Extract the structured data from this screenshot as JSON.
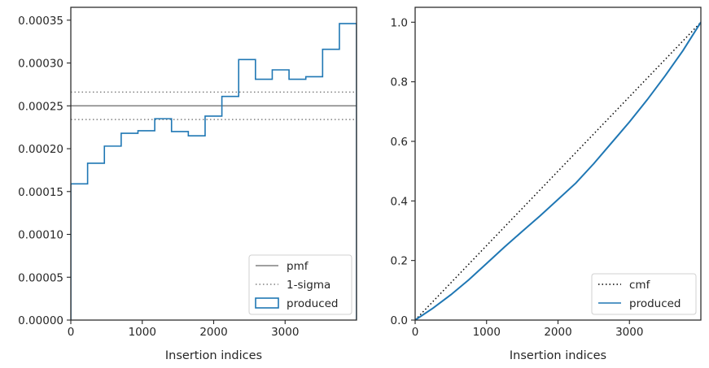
{
  "chart_data": [
    {
      "type": "step-histogram",
      "xlabel": "Insertion indices",
      "ylabel": "",
      "xlim": [
        0,
        4000
      ],
      "ylim": [
        0,
        0.000365
      ],
      "xticks": [
        0,
        1000,
        2000,
        3000
      ],
      "xtick_labels": [
        "0",
        "1000",
        "2000",
        "3000"
      ],
      "yticks": [
        0,
        5e-05,
        0.0001,
        0.00015,
        0.0002,
        0.00025,
        0.0003,
        0.00035
      ],
      "ytick_labels": [
        "0.00000",
        "0.00005",
        "0.00010",
        "0.00015",
        "0.00020",
        "0.00025",
        "0.00030",
        "0.00035"
      ],
      "grid": false,
      "legend_position": "lower-right",
      "series": [
        {
          "name": "pmf",
          "kind": "hline",
          "y": 0.00025,
          "color": "#808080",
          "style": "solid"
        },
        {
          "name": "1-sigma",
          "kind": "hlines",
          "y": [
            0.000266,
            0.000234
          ],
          "color": "#808080",
          "style": "dotted"
        },
        {
          "name": "produced",
          "kind": "step",
          "color": "#1f77b4",
          "bin_edges": [
            0,
            235,
            470,
            705,
            940,
            1175,
            1410,
            1645,
            1880,
            2115,
            2350,
            2585,
            2820,
            3055,
            3290,
            3525,
            3760,
            4000
          ],
          "values": [
            0.000159,
            0.000183,
            0.000203,
            0.000218,
            0.000221,
            0.000235,
            0.00022,
            0.000215,
            0.000238,
            0.000261,
            0.000304,
            0.000281,
            0.000292,
            0.000281,
            0.000284,
            0.000316,
            0.000346
          ]
        }
      ]
    },
    {
      "type": "line",
      "xlabel": "Insertion indices",
      "ylabel": "",
      "xlim": [
        0,
        4000
      ],
      "ylim": [
        0,
        1.05
      ],
      "xticks": [
        0,
        1000,
        2000,
        3000
      ],
      "xtick_labels": [
        "0",
        "1000",
        "2000",
        "3000"
      ],
      "yticks": [
        0,
        0.2,
        0.4,
        0.6,
        0.8,
        1.0
      ],
      "ytick_labels": [
        "0.0",
        "0.2",
        "0.4",
        "0.6",
        "0.8",
        "1.0"
      ],
      "grid": false,
      "legend_position": "lower-right",
      "series": [
        {
          "name": "cmf",
          "kind": "line",
          "color": "#000000",
          "style": "dotted",
          "x": [
            0,
            4000
          ],
          "y": [
            0,
            1.0
          ]
        },
        {
          "name": "produced",
          "kind": "line",
          "color": "#1f77b4",
          "style": "solid",
          "x": [
            0,
            250,
            500,
            750,
            1000,
            1250,
            1500,
            1750,
            2000,
            2250,
            2500,
            2750,
            3000,
            3250,
            3500,
            3750,
            4000
          ],
          "y": [
            0,
            0.04,
            0.085,
            0.135,
            0.19,
            0.245,
            0.298,
            0.35,
            0.405,
            0.46,
            0.525,
            0.595,
            0.665,
            0.74,
            0.82,
            0.905,
            1.0
          ]
        }
      ]
    }
  ]
}
